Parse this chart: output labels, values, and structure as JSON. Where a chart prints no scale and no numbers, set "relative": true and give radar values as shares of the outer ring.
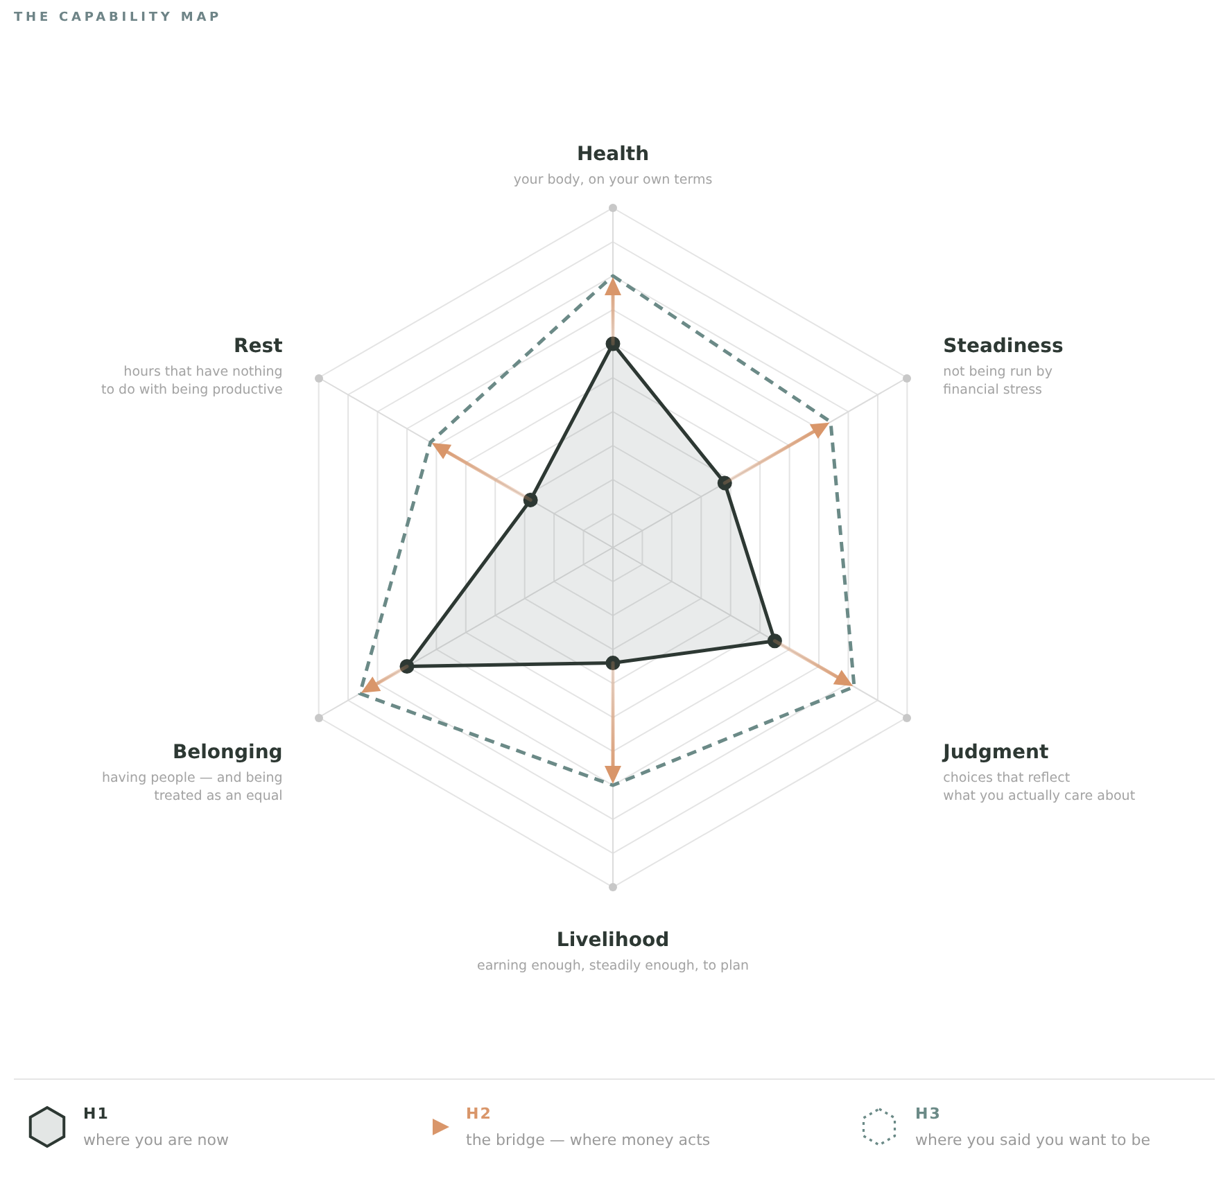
{
  "chart_data": {
    "type": "radar",
    "title": "THE CAPABILITY MAP",
    "relative": true,
    "grid": true,
    "legend": "bottom",
    "categories": [
      "Health",
      "Steadiness",
      "Judgment",
      "Livelihood",
      "Belonging",
      "Rest"
    ],
    "series": [
      {
        "name": "H1",
        "color": "#2d3833",
        "marker": "circle",
        "line_style": "solid",
        "values": [
          0.6,
          0.38,
          0.55,
          0.34,
          0.7,
          0.28
        ]
      },
      {
        "name": "H3",
        "color": "#6b8a87",
        "marker": "none",
        "line_style": "dashed",
        "values": [
          0.8,
          0.74,
          0.82,
          0.7,
          0.86,
          0.62
        ]
      }
    ],
    "annotations": [
      "your body, on your own terms",
      "not being run by\nfinancial stress",
      "choices that reflect\nwhat you actually care about",
      "earning enough, steadily enough, to plan",
      "having people — and being\ntreated as an equal",
      "hours that have nothing\nto do with being productive",
      "where you are now",
      "H2",
      "the bridge — where money acts",
      "where you said you want to be"
    ]
  }
}
